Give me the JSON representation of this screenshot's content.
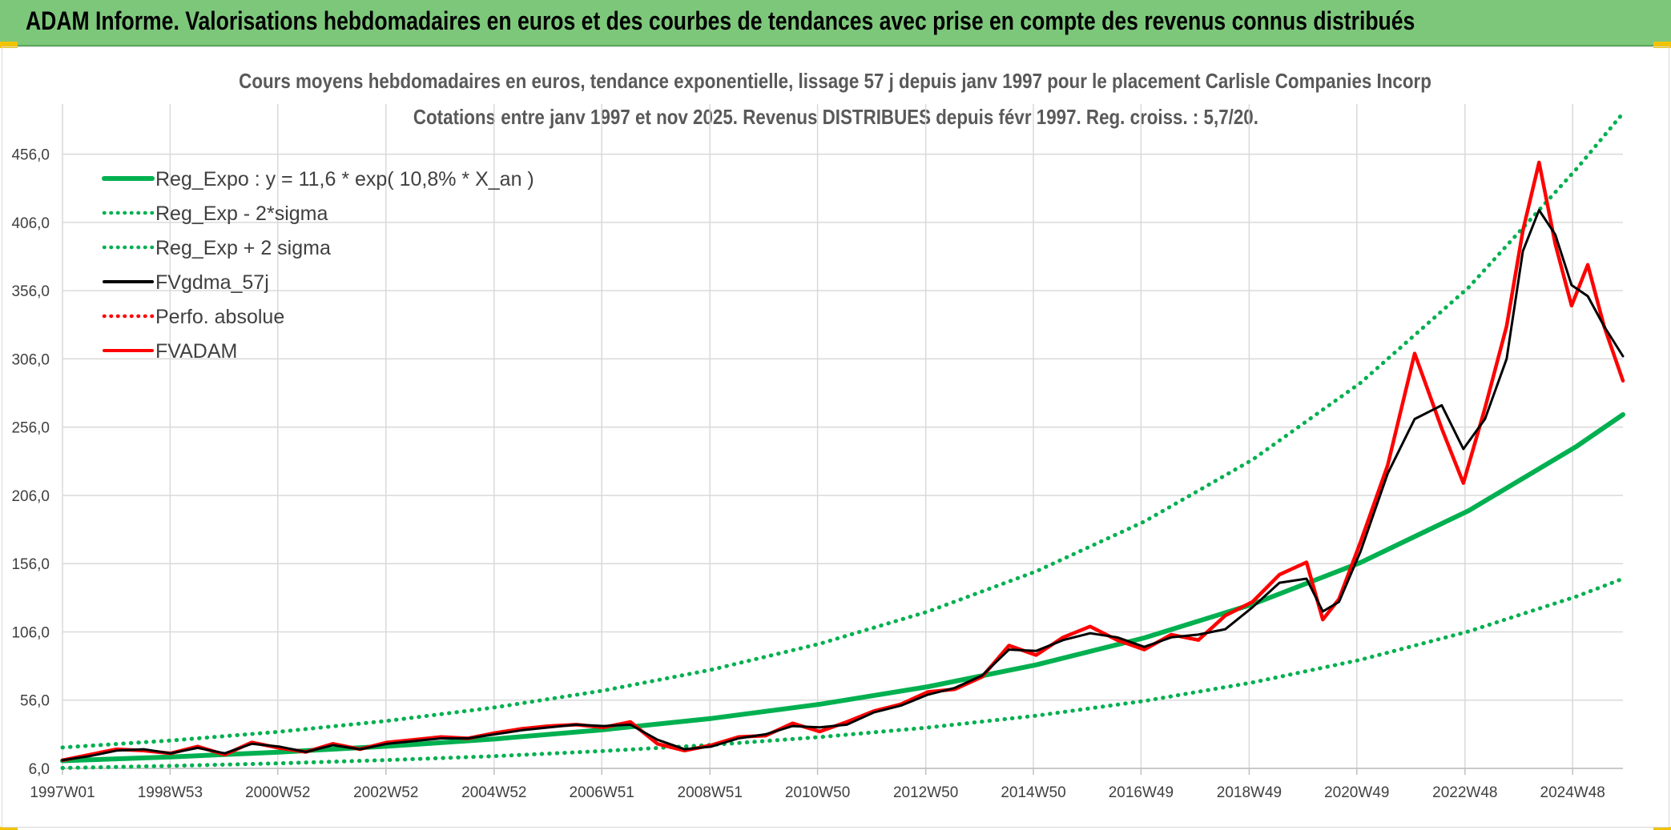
{
  "banner": {
    "title": "ADAM Informe. Valorisations hebdomadaires en euros et des courbes de tendances avec prise en compte des revenus connus distribués"
  },
  "colors": {
    "banner_bg": "#7dc77b",
    "reg_expo": "#00b050",
    "fvgdma": "#000000",
    "fvadam": "#ff0000",
    "grid": "#d9d9d9",
    "accent_corner": "#f2c300"
  },
  "chart_data": {
    "type": "line",
    "title_line1": "Cours moyens hebdomadaires en euros, tendance exponentielle, lissage 57 j depuis janv 1997 pour le placement Carlisle Companies Incorp",
    "title_line2": "Cotations entre janv 1997 et nov 2025. Revenus DISTRIBUES depuis févr 1997. Reg. croiss. : 5,7/20.",
    "xlabel": "",
    "ylabel": "",
    "xlim": [
      1997.0,
      2025.85
    ],
    "ylim": [
      6.0,
      481.0
    ],
    "y_ticks": [
      6.0,
      56.0,
      106.0,
      156.0,
      206.0,
      256.0,
      306.0,
      356.0,
      406.0,
      456.0
    ],
    "y_tick_labels": [
      "6,0",
      "56,0",
      "106,0",
      "156,0",
      "206,0",
      "256,0",
      "306,0",
      "356,0",
      "406,0",
      "456,0"
    ],
    "x_ticks": [
      1997.0,
      1998.99,
      2000.98,
      2002.98,
      2004.98,
      2006.97,
      2008.97,
      2010.96,
      2012.96,
      2014.95,
      2016.94,
      2018.94,
      2020.93,
      2022.93,
      2024.92
    ],
    "x_tick_labels": [
      "1997W01",
      "1998W53",
      "2000W52",
      "2002W52",
      "2004W52",
      "2006W51",
      "2008W51",
      "2010W50",
      "2012W50",
      "2014W50",
      "2016W49",
      "2018W49",
      "2020W49",
      "2022W48",
      "2024W48"
    ],
    "grid": true,
    "legend_position": "top-left",
    "legend": [
      {
        "label": "Reg_Expo : y = 11,6 * exp( 10,8% *  X_an )",
        "style": "solid",
        "color": "#00b050"
      },
      {
        "label": "Reg_Exp - 2*sigma",
        "style": "dotted",
        "color": "#00b050"
      },
      {
        "label": "Reg_Exp + 2 sigma",
        "style": "dotted",
        "color": "#00b050"
      },
      {
        "label": "FVgdma_57j",
        "style": "solid",
        "color": "#000000"
      },
      {
        "label": "Perfo. absolue",
        "style": "dotted",
        "color": "#ff0000"
      },
      {
        "label": "FVADAM",
        "style": "solid",
        "color": "#ff0000"
      }
    ],
    "series": [
      {
        "name": "Reg_Expo",
        "x": [
          1997,
          1999,
          2001,
          2003,
          2005,
          2007,
          2009,
          2011,
          2013,
          2015,
          2017,
          2019,
          2021,
          2023,
          2025,
          2025.85
        ],
        "values": [
          11.6,
          14.4,
          17.9,
          22.2,
          27.6,
          34.3,
          42.6,
          53.0,
          65.8,
          81.8,
          101.6,
          126.2,
          156.8,
          194.9,
          242.1,
          265.2
        ]
      },
      {
        "name": "Reg_Exp - 2*sigma",
        "x": [
          1997,
          1999,
          2001,
          2003,
          2005,
          2007,
          2009,
          2011,
          2013,
          2015,
          2017,
          2019,
          2021,
          2023,
          2025,
          2025.85
        ],
        "values": [
          6.3,
          7.8,
          9.7,
          12.1,
          15.0,
          18.7,
          23.2,
          28.9,
          35.9,
          44.6,
          55.4,
          68.9,
          85.6,
          106.4,
          132.1,
          145.0
        ]
      },
      {
        "name": "Reg_Exp + 2 sigma",
        "x": [
          1997,
          1999,
          2001,
          2003,
          2005,
          2007,
          2009,
          2011,
          2013,
          2015,
          2017,
          2019,
          2021,
          2023,
          2025,
          2025.85
        ],
        "values": [
          21.3,
          26.4,
          32.8,
          40.8,
          50.7,
          63.0,
          78.3,
          97.3,
          120.9,
          150.3,
          186.8,
          232.1,
          288.5,
          358.5,
          445.6,
          486.0
        ]
      },
      {
        "name": "FVgdma_57j",
        "x": [
          1997.0,
          1997.5,
          1998.0,
          1998.5,
          1999.0,
          1999.5,
          2000.0,
          2000.5,
          2001.0,
          2001.5,
          2002.0,
          2002.5,
          2003.0,
          2003.5,
          2004.0,
          2004.5,
          2005.0,
          2005.5,
          2006.0,
          2006.5,
          2007.0,
          2007.5,
          2008.0,
          2008.5,
          2009.0,
          2009.5,
          2010.0,
          2010.5,
          2011.0,
          2011.5,
          2012.0,
          2012.5,
          2013.0,
          2013.5,
          2014.0,
          2014.5,
          2015.0,
          2015.5,
          2016.0,
          2016.5,
          2017.0,
          2017.5,
          2018.0,
          2018.5,
          2019.0,
          2019.5,
          2020.0,
          2020.3,
          2020.6,
          2021.0,
          2021.5,
          2022.0,
          2022.5,
          2022.9,
          2023.3,
          2023.7,
          2024.0,
          2024.3,
          2024.6,
          2024.9,
          2025.2,
          2025.5,
          2025.85
        ],
        "values": [
          12.0,
          15.0,
          19.0,
          20.0,
          17.0,
          21.0,
          17.0,
          24.0,
          22.0,
          18.0,
          23.0,
          20.0,
          24.0,
          26.0,
          28.0,
          28.0,
          31.0,
          34.0,
          36.0,
          38.0,
          37.0,
          38.0,
          27.0,
          20.0,
          22.0,
          28.0,
          31.0,
          37.0,
          36.0,
          38.0,
          47.0,
          52.0,
          60.0,
          65.0,
          74.0,
          93.0,
          92.0,
          100.0,
          105.0,
          102.0,
          95.0,
          102.0,
          104.0,
          108.0,
          124.0,
          142.0,
          145.0,
          121.0,
          128.0,
          165.0,
          222.0,
          262.0,
          272.0,
          240.0,
          262.0,
          306.0,
          385.0,
          415.0,
          397.0,
          360.0,
          352.0,
          330.0,
          308.0
        ]
      },
      {
        "name": "FVADAM",
        "x": [
          1997.0,
          1997.5,
          1998.0,
          1998.5,
          1999.0,
          1999.5,
          2000.0,
          2000.5,
          2001.0,
          2001.5,
          2002.0,
          2002.5,
          2003.0,
          2003.5,
          2004.0,
          2004.5,
          2005.0,
          2005.5,
          2006.0,
          2006.5,
          2007.0,
          2007.5,
          2008.0,
          2008.5,
          2009.0,
          2009.5,
          2010.0,
          2010.5,
          2011.0,
          2011.5,
          2012.0,
          2012.5,
          2013.0,
          2013.5,
          2014.0,
          2014.5,
          2015.0,
          2015.5,
          2016.0,
          2016.5,
          2017.0,
          2017.5,
          2018.0,
          2018.5,
          2019.0,
          2019.5,
          2020.0,
          2020.3,
          2020.6,
          2021.0,
          2021.5,
          2022.0,
          2022.5,
          2022.9,
          2023.3,
          2023.7,
          2024.0,
          2024.3,
          2024.6,
          2024.9,
          2025.2,
          2025.5,
          2025.85
        ],
        "values": [
          12.0,
          16.0,
          20.0,
          19.0,
          17.0,
          22.0,
          16.0,
          25.0,
          21.0,
          18.0,
          24.0,
          20.0,
          25.0,
          27.0,
          29.0,
          28.0,
          32.0,
          35.0,
          37.0,
          38.0,
          36.0,
          40.0,
          24.0,
          19.0,
          23.0,
          29.0,
          30.0,
          39.0,
          33.0,
          40.0,
          48.0,
          53.0,
          62.0,
          64.0,
          73.0,
          96.0,
          89.0,
          102.0,
          110.0,
          100.0,
          93.0,
          104.0,
          100.0,
          118.0,
          128.0,
          148.0,
          157.0,
          115.0,
          130.0,
          172.0,
          228.0,
          310.0,
          255.0,
          215.0,
          270.0,
          330.0,
          400.0,
          450.0,
          390.0,
          345.0,
          375.0,
          330.0,
          290.0
        ]
      }
    ]
  }
}
